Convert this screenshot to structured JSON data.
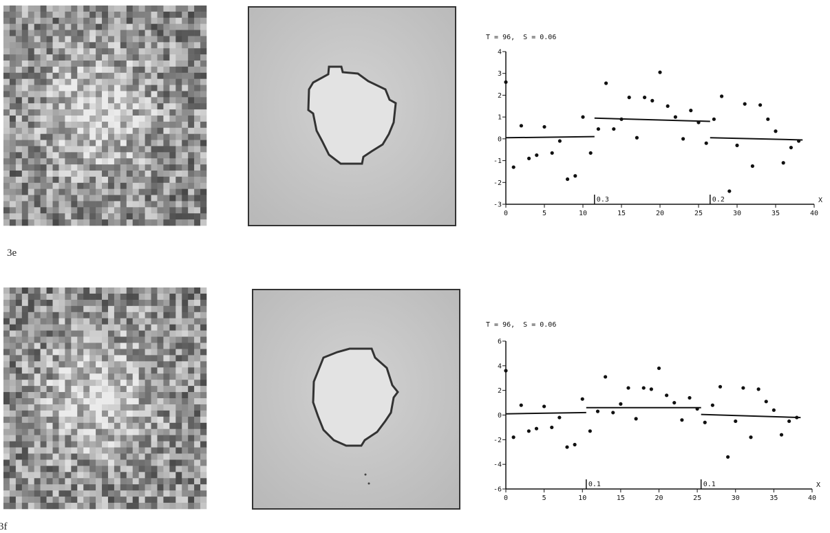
{
  "figure_labels": [
    "3e",
    "3f"
  ],
  "chart_data": [
    {
      "type": "scatter",
      "title": "T = 96,  S = 0.06",
      "x_label": "X",
      "xlim": [
        0,
        40
      ],
      "xticks": [
        0,
        5,
        10,
        15,
        20,
        25,
        30,
        35,
        40
      ],
      "ylim": [
        -3,
        4
      ],
      "yticks": [
        -3,
        -2,
        -1,
        0,
        1,
        2,
        3,
        4
      ],
      "x": [
        0,
        1,
        2,
        3,
        4,
        5,
        6,
        7,
        8,
        9,
        10,
        11,
        12,
        13,
        14,
        15,
        16,
        17,
        18,
        19,
        20,
        21,
        22,
        23,
        24,
        25,
        26,
        27,
        28,
        29,
        30,
        31,
        32,
        33,
        34,
        35,
        36,
        37,
        38
      ],
      "values": [
        2.6,
        -1.3,
        0.6,
        -0.9,
        -0.75,
        0.55,
        -0.65,
        -0.1,
        -1.85,
        -1.7,
        1.0,
        -0.65,
        0.45,
        2.55,
        0.45,
        0.9,
        1.9,
        0.05,
        1.9,
        1.75,
        3.05,
        1.5,
        1.0,
        0.0,
        1.3,
        0.75,
        -0.2,
        0.9,
        1.95,
        -2.4,
        -0.3,
        1.6,
        -1.25,
        1.55,
        0.9,
        0.35,
        -1.1,
        -0.4,
        -0.1
      ],
      "fit": [
        {
          "x": [
            0,
            11.5
          ],
          "y": [
            0.05,
            0.1
          ]
        },
        {
          "x": [
            11.5,
            26.5
          ],
          "y": [
            0.95,
            0.8
          ]
        },
        {
          "x": [
            26.5,
            38.5
          ],
          "y": [
            0.05,
            -0.05
          ]
        }
      ],
      "breaks": [
        {
          "x": 11.5,
          "value": 0.3
        },
        {
          "x": 26.5,
          "value": 0.2
        }
      ]
    },
    {
      "type": "scatter",
      "title": "T = 96,  S = 0.06",
      "x_label": "X",
      "xlim": [
        0,
        40
      ],
      "xticks": [
        0,
        5,
        10,
        15,
        20,
        25,
        30,
        35,
        40
      ],
      "ylim": [
        -6,
        6
      ],
      "yticks": [
        -6,
        -4,
        -2,
        0,
        2,
        4,
        6
      ],
      "x": [
        0,
        1,
        2,
        3,
        4,
        5,
        6,
        7,
        8,
        9,
        10,
        11,
        12,
        13,
        14,
        15,
        16,
        17,
        18,
        19,
        20,
        21,
        22,
        23,
        24,
        25,
        26,
        27,
        28,
        29,
        30,
        31,
        32,
        33,
        34,
        35,
        36,
        37,
        38
      ],
      "values": [
        3.6,
        -1.8,
        0.8,
        -1.3,
        -1.1,
        0.7,
        -1.0,
        -0.2,
        -2.6,
        -2.4,
        1.3,
        -1.3,
        0.3,
        3.1,
        0.2,
        0.9,
        2.2,
        -0.3,
        2.2,
        2.1,
        3.8,
        1.6,
        1.0,
        -0.4,
        1.4,
        0.5,
        -0.6,
        0.8,
        2.3,
        -3.4,
        -0.5,
        2.2,
        -1.8,
        2.1,
        1.1,
        0.4,
        -1.6,
        -0.5,
        -0.2
      ],
      "fit": [
        {
          "x": [
            0,
            10.5
          ],
          "y": [
            0.1,
            0.2
          ]
        },
        {
          "x": [
            10.5,
            25.5
          ],
          "y": [
            0.6,
            0.6
          ]
        },
        {
          "x": [
            25.5,
            38.5
          ],
          "y": [
            0.05,
            -0.2
          ]
        }
      ],
      "breaks": [
        {
          "x": 10.5,
          "value": 0.1
        },
        {
          "x": 25.5,
          "value": 0.1
        }
      ]
    }
  ]
}
